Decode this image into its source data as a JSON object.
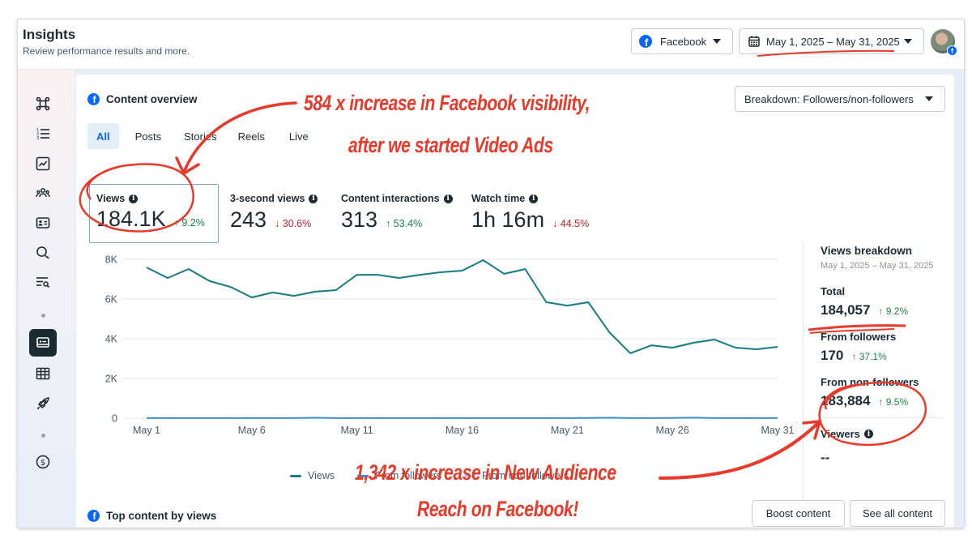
{
  "header": {
    "title": "Insights",
    "subtitle": "Review performance results and more.",
    "platform_selector": {
      "icon": "facebook-icon",
      "label": "Facebook"
    },
    "date_range_selector": {
      "icon": "calendar-icon",
      "label": "May 1, 2025 – May 31, 2025"
    },
    "avatar_badge": "f"
  },
  "sidebar": {
    "items": [
      {
        "icon": "hub-icon",
        "name": "overview"
      },
      {
        "icon": "numbered-list-icon",
        "name": "results"
      },
      {
        "icon": "trend-chart-icon",
        "name": "trends"
      },
      {
        "icon": "audience-icon",
        "name": "audience"
      },
      {
        "icon": "profile-card-icon",
        "name": "profile"
      },
      {
        "icon": "chat-bubbles-icon",
        "name": "messaging"
      },
      {
        "icon": "search-list-icon",
        "name": "search"
      },
      {
        "icon": "content-card-icon",
        "name": "content",
        "active": true
      },
      {
        "icon": "table-icon",
        "name": "reports"
      },
      {
        "icon": "rocket-icon",
        "name": "ads"
      },
      {
        "icon": "dollar-icon",
        "name": "monetization"
      }
    ]
  },
  "content_overview": {
    "title": "Content overview",
    "breakdown_selector": "Breakdown: Followers/non-followers",
    "tabs": [
      {
        "label": "All",
        "active": true
      },
      {
        "label": "Posts",
        "active": false
      },
      {
        "label": "Stories",
        "active": false
      },
      {
        "label": "Reels",
        "active": false
      },
      {
        "label": "Live",
        "active": false
      }
    ],
    "metrics": [
      {
        "label": "Views",
        "value": "184.1K",
        "delta": "9.2%",
        "direction": "up",
        "selected": true
      },
      {
        "label": "3-second views",
        "value": "243",
        "delta": "30.6%",
        "direction": "down"
      },
      {
        "label": "Content interactions",
        "value": "313",
        "delta": "53.4%",
        "direction": "up"
      },
      {
        "label": "Watch time",
        "value": "1h 16m",
        "delta": "44.5%",
        "direction": "down"
      }
    ],
    "arrow_up": "↑",
    "arrow_down": "↓",
    "info_glyph": "i"
  },
  "chart_data": {
    "type": "line",
    "title": "",
    "xlabel": "",
    "ylabel": "",
    "x": [
      "May 1",
      "May 2",
      "May 3",
      "May 4",
      "May 5",
      "May 6",
      "May 7",
      "May 8",
      "May 9",
      "May 10",
      "May 11",
      "May 12",
      "May 13",
      "May 14",
      "May 15",
      "May 16",
      "May 17",
      "May 18",
      "May 19",
      "May 20",
      "May 21",
      "May 22",
      "May 23",
      "May 24",
      "May 25",
      "May 26",
      "May 27",
      "May 28",
      "May 29",
      "May 30",
      "May 31"
    ],
    "x_tick_labels": [
      "May 1",
      "May 6",
      "May 11",
      "May 16",
      "May 21",
      "May 26",
      "May 31"
    ],
    "y_tick_labels": [
      "0",
      "2K",
      "4K",
      "6K",
      "8K"
    ],
    "y_ticks": [
      0,
      2000,
      4000,
      6000,
      8000
    ],
    "ylim": [
      0,
      8000
    ],
    "grid": true,
    "legend_position": "bottom-center",
    "series": [
      {
        "name": "Views",
        "color": "#1a7f83",
        "values": [
          7590,
          7060,
          7510,
          6900,
          6610,
          6080,
          6330,
          6160,
          6370,
          6450,
          7220,
          7220,
          7060,
          7220,
          7350,
          7430,
          7960,
          7270,
          7510,
          5840,
          5670,
          5840,
          4330,
          3270,
          3670,
          3550,
          3800,
          3960,
          3550,
          3470,
          3590
        ]
      },
      {
        "name": "From followers",
        "color": "#3e8fd1",
        "values": [
          5,
          5,
          5,
          4,
          6,
          5,
          5,
          6,
          20,
          6,
          5,
          6,
          5,
          6,
          5,
          6,
          5,
          5,
          6,
          5,
          6,
          10,
          20,
          6,
          5,
          10,
          25,
          6,
          5,
          6,
          5
        ]
      },
      {
        "name": "From non-followers",
        "color": "#a9d3f0",
        "values": [
          7585,
          7055,
          7505,
          6896,
          6604,
          6075,
          6325,
          6154,
          6350,
          6444,
          7215,
          7214,
          7055,
          7214,
          7345,
          7424,
          7955,
          7265,
          7504,
          5835,
          5664,
          5830,
          4310,
          3264,
          3665,
          3540,
          3775,
          3954,
          3545,
          3464,
          3585
        ]
      }
    ]
  },
  "views_breakdown": {
    "title": "Views breakdown",
    "date_range": "May 1, 2025 – May 31, 2025",
    "rows": [
      {
        "label": "Total",
        "value": "184,057",
        "delta": "9.2%",
        "direction": "up"
      },
      {
        "label": "From followers",
        "value": "170",
        "delta": "37.1%",
        "direction": "up"
      },
      {
        "label": "From non-followers",
        "value": "183,884",
        "delta": "9.5%",
        "direction": "up"
      }
    ],
    "viewers_label": "Viewers",
    "viewers_value": "--"
  },
  "top_content": {
    "title": "Top content by views",
    "boost_button": "Boost content",
    "see_all_button": "See all content"
  },
  "annotations": {
    "color": "#e8392a",
    "top_line1": "584 x increase in Facebook visibility,",
    "top_line2": "after we started Video Ads",
    "bottom_line1": "1,342 x increase in New Audience",
    "bottom_line2": "Reach on Facebook!"
  }
}
